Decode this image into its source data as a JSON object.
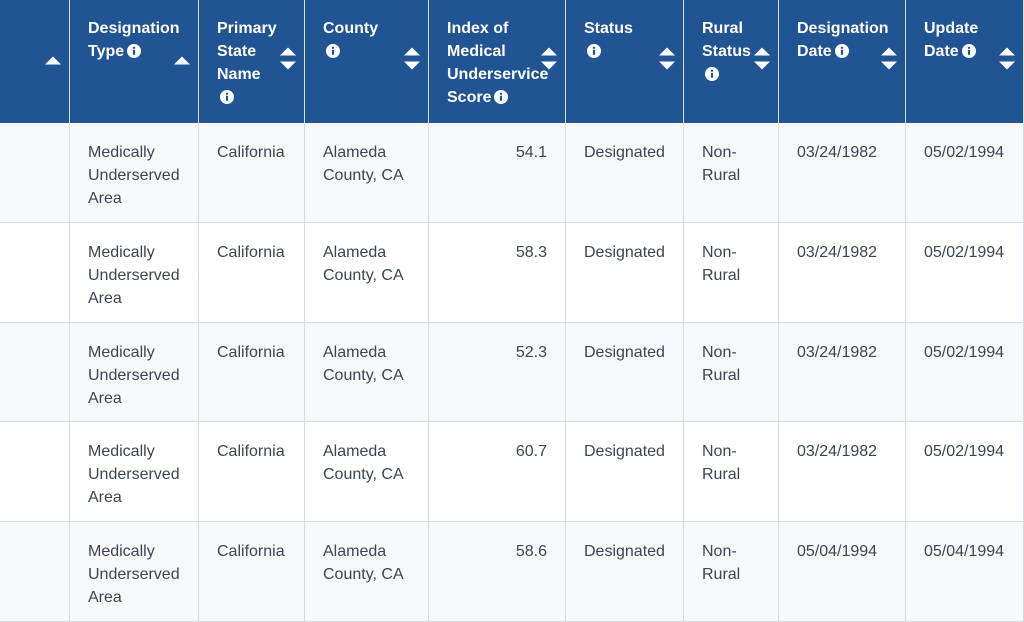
{
  "table": {
    "headers": [
      "Designation Type",
      "Primary State Name",
      "County",
      "Index of Medical Underservice Score",
      "Status",
      "Rural Status",
      "Designation Date",
      "Update Date"
    ],
    "rows": [
      [
        "Medically Underserved Area",
        "California",
        "Alameda County, CA",
        "54.1",
        "Designated",
        "Non-Rural",
        "03/24/1982",
        "05/02/1994"
      ],
      [
        "Medically Underserved Area",
        "California",
        "Alameda County, CA",
        "58.3",
        "Designated",
        "Non-Rural",
        "03/24/1982",
        "05/02/1994"
      ],
      [
        "Medically Underserved Area",
        "California",
        "Alameda County, CA",
        "52.3",
        "Designated",
        "Non-Rural",
        "03/24/1982",
        "05/02/1994"
      ],
      [
        "Medically Underserved Area",
        "California",
        "Alameda County, CA",
        "60.7",
        "Designated",
        "Non-Rural",
        "03/24/1982",
        "05/02/1994"
      ],
      [
        "Medically Underserved Area",
        "California",
        "Alameda County, CA",
        "58.6",
        "Designated",
        "Non-Rural",
        "05/04/1994",
        "05/04/1994"
      ]
    ]
  }
}
